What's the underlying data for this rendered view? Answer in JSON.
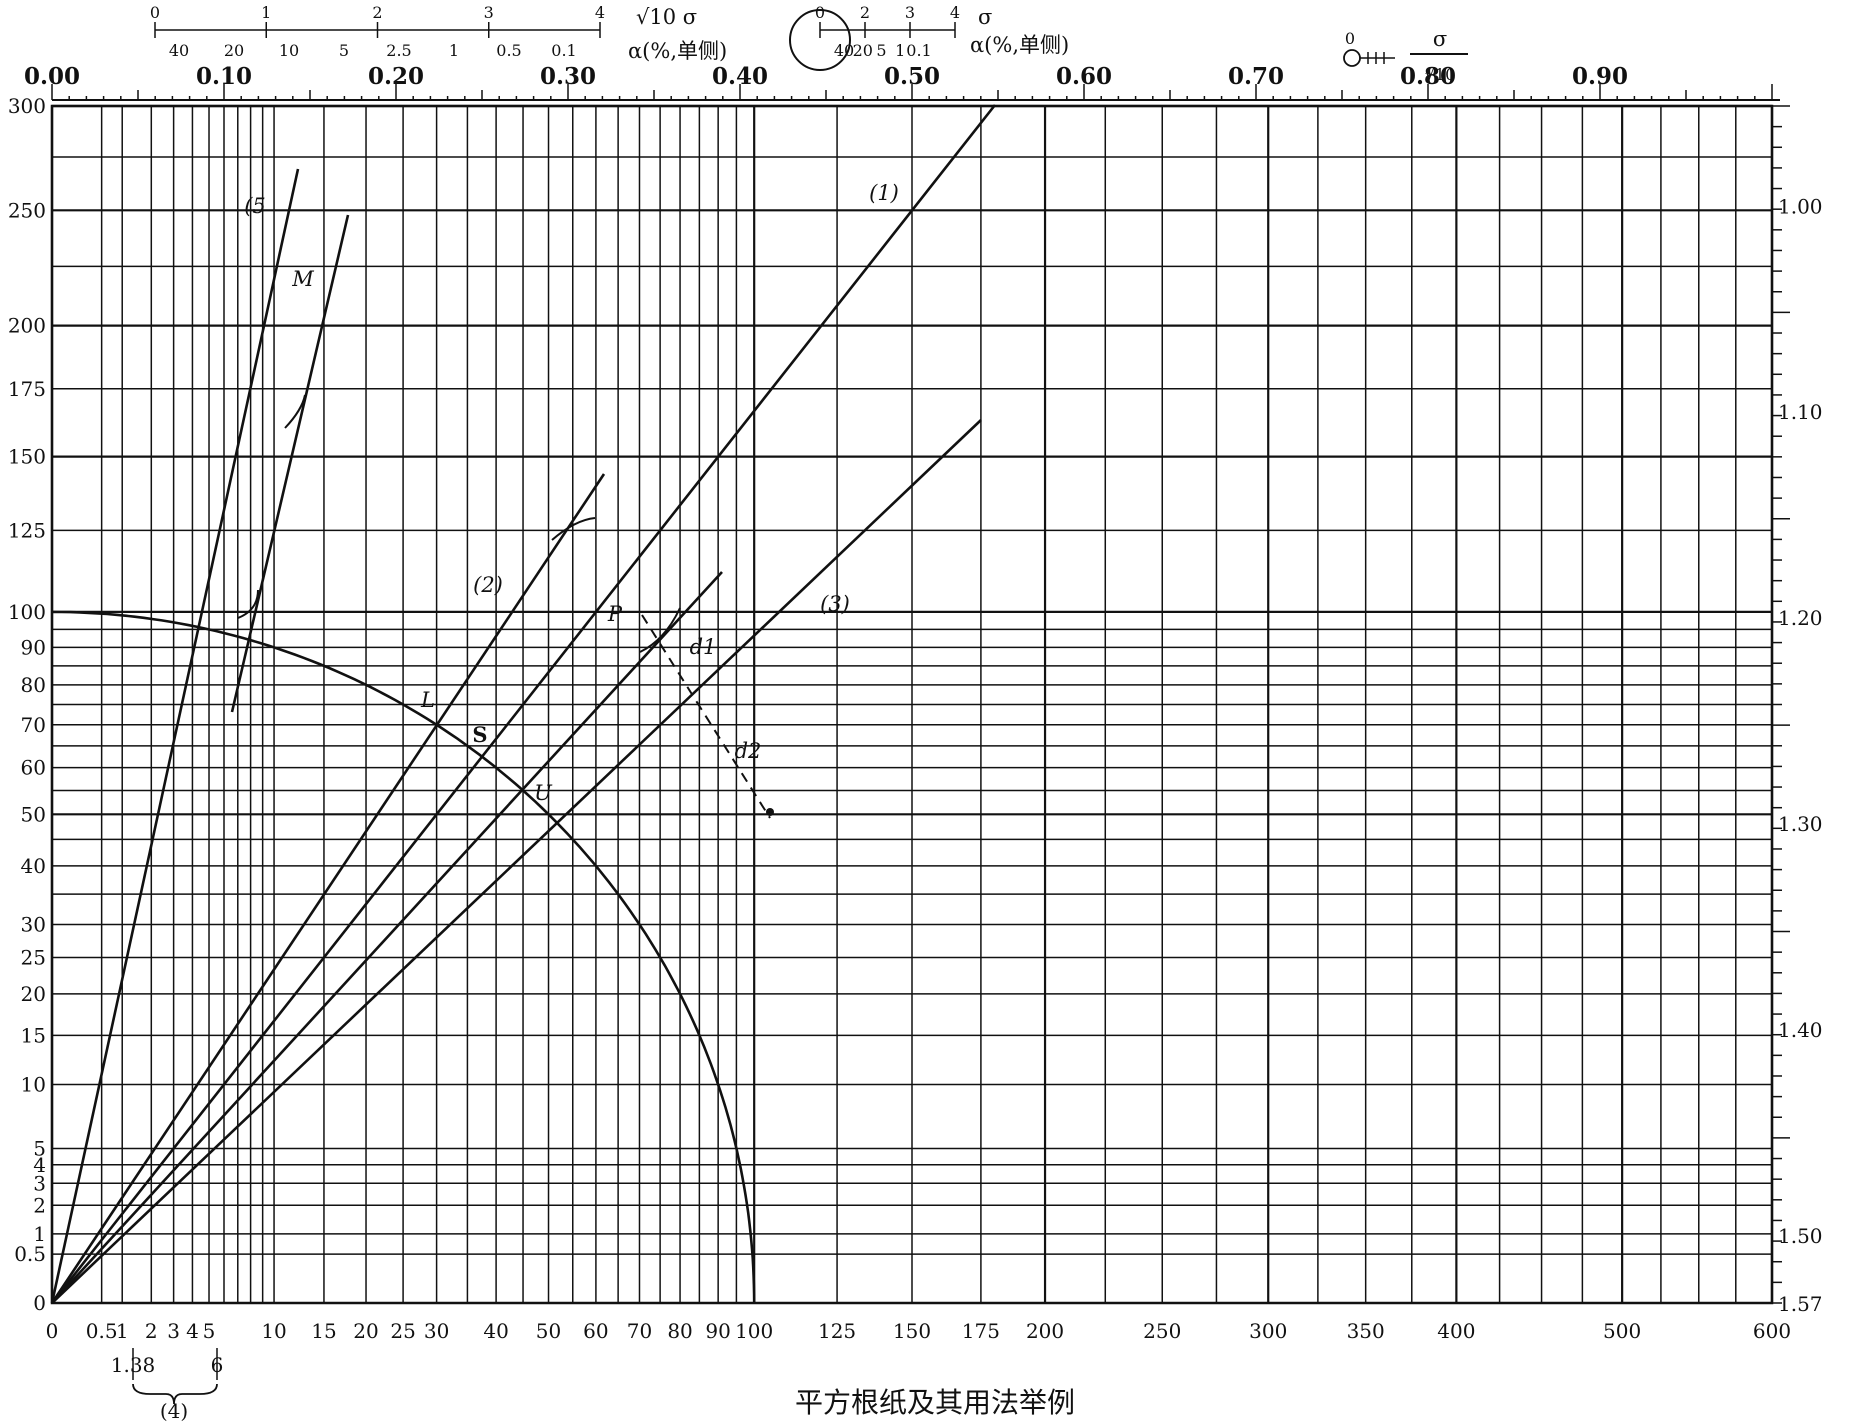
{
  "caption": "平方根纸及其用法举例",
  "bottom_axis": {
    "ticks": [
      "0",
      "0.5",
      "1",
      "2",
      "3",
      "4",
      "5",
      "10",
      "15",
      "20",
      "25",
      "30",
      "40",
      "50",
      "60",
      "70",
      "80",
      "90",
      "100",
      "125",
      "150",
      "175",
      "200",
      "250",
      "300",
      "350",
      "400",
      "500",
      "600"
    ],
    "sub_label_left": "1.38",
    "sub_label_right": "6",
    "brace_label": "(4)"
  },
  "left_axis": {
    "ticks": [
      "0",
      "0.5",
      "1",
      "2",
      "3",
      "4",
      "5",
      "10",
      "15",
      "20",
      "25",
      "30",
      "40",
      "50",
      "60",
      "70",
      "80",
      "90",
      "100",
      "125",
      "150",
      "175",
      "200",
      "250",
      "300"
    ]
  },
  "top_axis": {
    "ticks": [
      "0.00",
      "0.10",
      "0.20",
      "0.30",
      "0.40",
      "0.50",
      "0.60",
      "0.70",
      "0.80",
      "0.90"
    ]
  },
  "right_axis": {
    "ticks": [
      "1.00",
      "1.10",
      "1.20",
      "1.30",
      "1.40",
      "1.50",
      "1.57"
    ]
  },
  "scale_1": {
    "sigma_ticks": [
      "0",
      "1",
      "2",
      "3",
      "4"
    ],
    "alpha_ticks": [
      "40",
      "20",
      "10",
      "5",
      "2.5",
      "1",
      "0.5",
      "0.1"
    ],
    "sigma_label": "√10 σ",
    "alpha_label": "α(%,单侧)"
  },
  "scale_2": {
    "sigma_ticks": [
      "0",
      "2",
      "3",
      "4"
    ],
    "alpha_ticks": [
      "40",
      "20",
      "5",
      "1",
      "0.1"
    ],
    "sigma_label": "σ",
    "alpha_label": "α(%,单侧)"
  },
  "scale_3": {
    "zero_label": "0",
    "sigma_label": "σ",
    "denominator_label": "√10"
  },
  "curve_labels": {
    "line_1": "(1)",
    "line_2": "(2)",
    "line_3": "(3)",
    "line_5": "(5",
    "point_M": "M",
    "point_L": "L",
    "point_S": "S",
    "point_U": "U",
    "point_P": "P",
    "point_d1": "d1",
    "point_d2": "d2"
  }
}
